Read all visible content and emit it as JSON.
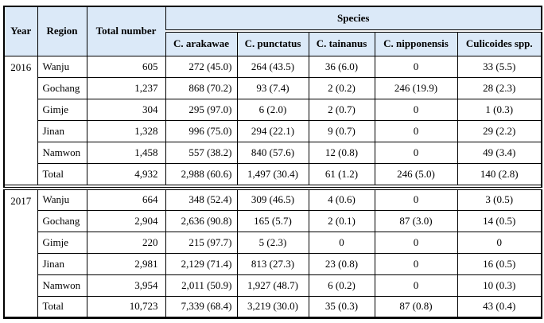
{
  "table": {
    "header": {
      "year": "Year",
      "region": "Region",
      "total_number": "Total number",
      "species_group": "Species",
      "species": [
        "C. arakawae",
        "C. punctatus",
        "C. tainanus",
        "C. nipponensis",
        "Culicoides spp."
      ]
    },
    "groups": [
      {
        "year": "2016",
        "rows": [
          {
            "region": "Wanju",
            "total": "605",
            "values": [
              "272 (45.0)",
              "264 (43.5)",
              "36 (6.0)",
              "0",
              "33 (5.5)"
            ]
          },
          {
            "region": "Gochang",
            "total": "1,237",
            "values": [
              "868 (70.2)",
              "93 (7.4)",
              "2 (0.2)",
              "246 (19.9)",
              "28 (2.3)"
            ]
          },
          {
            "region": "Gimje",
            "total": "304",
            "values": [
              "295 (97.0)",
              "6 (2.0)",
              "2 (0.7)",
              "0",
              "1 (0.3)"
            ]
          },
          {
            "region": "Jinan",
            "total": "1,328",
            "values": [
              "996 (75.0)",
              "294 (22.1)",
              "9 (0.7)",
              "0",
              "29 (2.2)"
            ]
          },
          {
            "region": "Namwon",
            "total": "1,458",
            "values": [
              "557 (38.2)",
              "840 (57.6)",
              "12 (0.8)",
              "0",
              "49 (3.4)"
            ]
          },
          {
            "region": "Total",
            "total": "4,932",
            "values": [
              "2,988 (60.6)",
              "1,497 (30.4)",
              "61 (1.2)",
              "246 (5.0)",
              "140 (2.8)"
            ]
          }
        ]
      },
      {
        "year": "2017",
        "rows": [
          {
            "region": "Wanju",
            "total": "664",
            "values": [
              "348 (52.4)",
              "309 (46.5)",
              "4 (0.6)",
              "0",
              "3 (0.5)"
            ]
          },
          {
            "region": "Gochang",
            "total": "2,904",
            "values": [
              "2,636 (90.8)",
              "165 (5.7)",
              "2 (0.1)",
              "87 (3.0)",
              "14 (0.5)"
            ]
          },
          {
            "region": "Gimje",
            "total": "220",
            "values": [
              "215 (97.7)",
              "5 (2.3)",
              "0",
              "0",
              "0"
            ]
          },
          {
            "region": "Jinan",
            "total": "2,981",
            "values": [
              "2,129 (71.4)",
              "813 (27.3)",
              "23 (0.8)",
              "0",
              "16 (0.5)"
            ]
          },
          {
            "region": "Namwon",
            "total": "3,954",
            "values": [
              "2,011 (50.9)",
              "1,927 (48.7)",
              "6 (0.2)",
              "0",
              "10 (0.3)"
            ]
          },
          {
            "region": "Total",
            "total": "10,723",
            "values": [
              "7,339 (68.4)",
              "3,219 (30.0)",
              "35 (0.3)",
              "87 (0.8)",
              "43 (0.4)"
            ]
          }
        ]
      }
    ],
    "colors": {
      "header_bg": "#DBE9F8",
      "border": "#000000",
      "background": "#FFFFFF"
    }
  }
}
